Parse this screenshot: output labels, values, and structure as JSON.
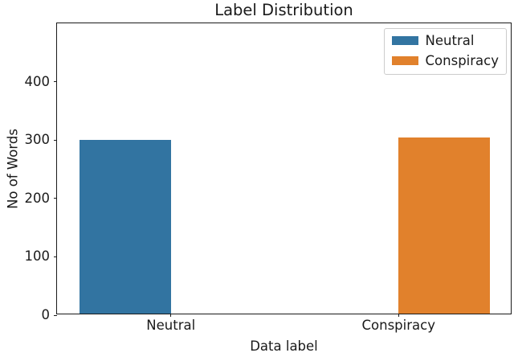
{
  "chart_data": {
    "type": "bar",
    "title": "Label Distribution",
    "xlabel": "Data label",
    "ylabel": "No of Words",
    "categories": [
      "Neutral",
      "Conspiracy"
    ],
    "series": [
      {
        "name": "Neutral",
        "color": "#3274a1",
        "values": [
          298,
          0
        ]
      },
      {
        "name": "Conspiracy",
        "color": "#e1812c",
        "values": [
          0,
          301
        ]
      }
    ],
    "yticks": [
      0,
      100,
      200,
      300,
      400
    ],
    "ylim": [
      0,
      500
    ],
    "legend": {
      "position": "upper right"
    },
    "grid": false,
    "bar_group_width": 0.8
  },
  "colors": {
    "background": "#ffffff",
    "spine": "#1a1a1a",
    "text": "#1a1a1a",
    "legend_border": "#cccccc"
  }
}
